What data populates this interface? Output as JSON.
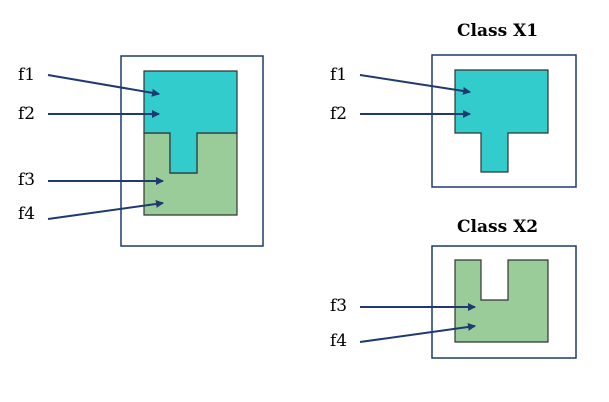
{
  "colors": {
    "cyan": "#33CCCC",
    "green": "#99CC99",
    "arrow": "#1F3A6E",
    "frame": "#1F3A6E",
    "region_border": "#333333"
  },
  "combined": {
    "labels": [
      "f1",
      "f2",
      "f3",
      "f4"
    ]
  },
  "class_x1": {
    "title": "Class X1",
    "labels": [
      "f1",
      "f2"
    ]
  },
  "class_x2": {
    "title": "Class X2",
    "labels": [
      "f3",
      "f4"
    ]
  }
}
